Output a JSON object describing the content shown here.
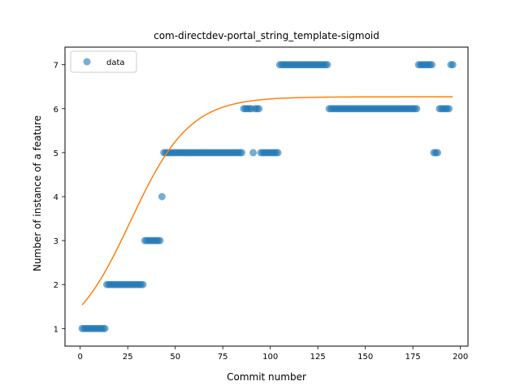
{
  "chart_data": {
    "type": "scatter",
    "title": "com-directdev-portal_string_template-sigmoid",
    "xlabel": "Commit number",
    "ylabel": "Number of instance of a feature",
    "xlim": [
      -8,
      204
    ],
    "ylim": [
      0.6,
      7.4
    ],
    "xticks": [
      0,
      25,
      50,
      75,
      100,
      125,
      150,
      175,
      200
    ],
    "yticks": [
      1,
      2,
      3,
      4,
      5,
      6,
      7
    ],
    "grid": false,
    "legend": {
      "position": "top-left",
      "entries": [
        "data"
      ]
    },
    "colors": {
      "data": "#1f77b4",
      "fit": "#ff7f0e"
    },
    "series": [
      {
        "name": "data",
        "kind": "scatter",
        "points": [
          [
            1,
            1
          ],
          [
            2,
            1
          ],
          [
            3,
            1
          ],
          [
            4,
            1
          ],
          [
            5,
            1
          ],
          [
            6,
            1
          ],
          [
            7,
            1
          ],
          [
            8,
            1
          ],
          [
            9,
            1
          ],
          [
            10,
            1
          ],
          [
            11,
            1
          ],
          [
            12,
            1
          ],
          [
            13,
            1
          ],
          [
            14,
            2
          ],
          [
            15,
            2
          ],
          [
            16,
            2
          ],
          [
            17,
            2
          ],
          [
            18,
            2
          ],
          [
            19,
            2
          ],
          [
            20,
            2
          ],
          [
            21,
            2
          ],
          [
            22,
            2
          ],
          [
            23,
            2
          ],
          [
            24,
            2
          ],
          [
            25,
            2
          ],
          [
            26,
            2
          ],
          [
            27,
            2
          ],
          [
            28,
            2
          ],
          [
            29,
            2
          ],
          [
            30,
            2
          ],
          [
            31,
            2
          ],
          [
            32,
            2
          ],
          [
            33,
            2
          ],
          [
            34,
            3
          ],
          [
            35,
            3
          ],
          [
            36,
            3
          ],
          [
            37,
            3
          ],
          [
            38,
            3
          ],
          [
            39,
            3
          ],
          [
            40,
            3
          ],
          [
            41,
            3
          ],
          [
            42,
            3
          ],
          [
            43,
            4
          ],
          [
            44,
            5
          ],
          [
            45,
            5
          ],
          [
            46,
            5
          ],
          [
            47,
            5
          ],
          [
            48,
            5
          ],
          [
            49,
            5
          ],
          [
            50,
            5
          ],
          [
            51,
            5
          ],
          [
            52,
            5
          ],
          [
            53,
            5
          ],
          [
            54,
            5
          ],
          [
            55,
            5
          ],
          [
            56,
            5
          ],
          [
            57,
            5
          ],
          [
            58,
            5
          ],
          [
            59,
            5
          ],
          [
            60,
            5
          ],
          [
            61,
            5
          ],
          [
            62,
            5
          ],
          [
            63,
            5
          ],
          [
            64,
            5
          ],
          [
            65,
            5
          ],
          [
            66,
            5
          ],
          [
            67,
            5
          ],
          [
            68,
            5
          ],
          [
            69,
            5
          ],
          [
            70,
            5
          ],
          [
            71,
            5
          ],
          [
            72,
            5
          ],
          [
            73,
            5
          ],
          [
            74,
            5
          ],
          [
            75,
            5
          ],
          [
            76,
            5
          ],
          [
            77,
            5
          ],
          [
            78,
            5
          ],
          [
            79,
            5
          ],
          [
            80,
            5
          ],
          [
            81,
            5
          ],
          [
            82,
            5
          ],
          [
            83,
            5
          ],
          [
            84,
            5
          ],
          [
            85,
            5
          ],
          [
            86,
            6
          ],
          [
            87,
            6
          ],
          [
            88,
            6
          ],
          [
            89,
            6
          ],
          [
            90,
            6
          ],
          [
            91,
            5
          ],
          [
            92,
            6
          ],
          [
            93,
            6
          ],
          [
            94,
            6
          ],
          [
            95,
            5
          ],
          [
            96,
            5
          ],
          [
            97,
            5
          ],
          [
            98,
            5
          ],
          [
            99,
            5
          ],
          [
            100,
            5
          ],
          [
            101,
            5
          ],
          [
            102,
            5
          ],
          [
            103,
            5
          ],
          [
            104,
            5
          ],
          [
            105,
            7
          ],
          [
            106,
            7
          ],
          [
            107,
            7
          ],
          [
            108,
            7
          ],
          [
            109,
            7
          ],
          [
            110,
            7
          ],
          [
            111,
            7
          ],
          [
            112,
            7
          ],
          [
            113,
            7
          ],
          [
            114,
            7
          ],
          [
            115,
            7
          ],
          [
            116,
            7
          ],
          [
            117,
            7
          ],
          [
            118,
            7
          ],
          [
            119,
            7
          ],
          [
            120,
            7
          ],
          [
            121,
            7
          ],
          [
            122,
            7
          ],
          [
            123,
            7
          ],
          [
            124,
            7
          ],
          [
            125,
            7
          ],
          [
            126,
            7
          ],
          [
            127,
            7
          ],
          [
            128,
            7
          ],
          [
            129,
            7
          ],
          [
            130,
            7
          ],
          [
            131,
            6
          ],
          [
            132,
            6
          ],
          [
            133,
            6
          ],
          [
            134,
            6
          ],
          [
            135,
            6
          ],
          [
            136,
            6
          ],
          [
            137,
            6
          ],
          [
            138,
            6
          ],
          [
            139,
            6
          ],
          [
            140,
            6
          ],
          [
            141,
            6
          ],
          [
            142,
            6
          ],
          [
            143,
            6
          ],
          [
            144,
            6
          ],
          [
            145,
            6
          ],
          [
            146,
            6
          ],
          [
            147,
            6
          ],
          [
            148,
            6
          ],
          [
            149,
            6
          ],
          [
            150,
            6
          ],
          [
            151,
            6
          ],
          [
            152,
            6
          ],
          [
            153,
            6
          ],
          [
            154,
            6
          ],
          [
            155,
            6
          ],
          [
            156,
            6
          ],
          [
            157,
            6
          ],
          [
            158,
            6
          ],
          [
            159,
            6
          ],
          [
            160,
            6
          ],
          [
            161,
            6
          ],
          [
            162,
            6
          ],
          [
            163,
            6
          ],
          [
            164,
            6
          ],
          [
            165,
            6
          ],
          [
            166,
            6
          ],
          [
            167,
            6
          ],
          [
            168,
            6
          ],
          [
            169,
            6
          ],
          [
            170,
            6
          ],
          [
            171,
            6
          ],
          [
            172,
            6
          ],
          [
            173,
            6
          ],
          [
            174,
            6
          ],
          [
            175,
            6
          ],
          [
            176,
            6
          ],
          [
            177,
            6
          ],
          [
            178,
            7
          ],
          [
            179,
            7
          ],
          [
            180,
            7
          ],
          [
            181,
            7
          ],
          [
            182,
            7
          ],
          [
            183,
            7
          ],
          [
            184,
            7
          ],
          [
            185,
            7
          ],
          [
            186,
            5
          ],
          [
            187,
            5
          ],
          [
            188,
            5
          ],
          [
            189,
            6
          ],
          [
            190,
            6
          ],
          [
            191,
            6
          ],
          [
            192,
            6
          ],
          [
            193,
            6
          ],
          [
            194,
            6
          ],
          [
            195,
            7
          ],
          [
            196,
            7
          ]
        ]
      },
      {
        "kind": "line",
        "function": "sigmoid",
        "params": {
          "L": 5.65,
          "k": 0.0645,
          "x0": 26.5,
          "offset": 0.62
        },
        "x_range": [
          1,
          196
        ]
      }
    ]
  }
}
